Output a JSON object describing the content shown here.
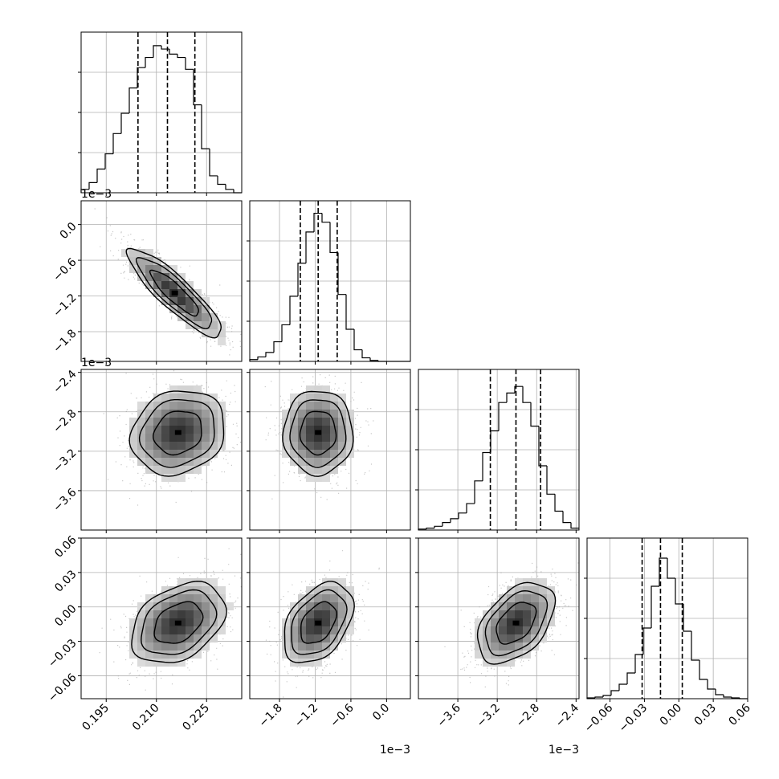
{
  "chart_data": [
    {
      "type": "histogram",
      "panel": "hist-p0",
      "param_index": 0,
      "x_range": [
        0.1875,
        0.2355
      ],
      "x_ticks": [
        0.195,
        0.21,
        0.225
      ],
      "quantile_lines": [
        0.2045,
        0.2133,
        0.2215
      ],
      "bin_edges": [
        0.1875,
        0.1899,
        0.1923,
        0.1947,
        0.1971,
        0.1995,
        0.2019,
        0.2043,
        0.2067,
        0.2091,
        0.2115,
        0.2139,
        0.2163,
        0.2187,
        0.2211,
        0.2235,
        0.2259,
        0.2283,
        0.2307,
        0.2331,
        0.2355
      ],
      "counts": [
        2,
        6,
        14,
        23,
        35,
        47,
        62,
        74,
        80,
        87,
        85,
        82,
        80,
        73,
        52,
        26,
        10,
        5,
        2,
        0
      ],
      "ylim": [
        0,
        95
      ]
    },
    {
      "type": "histogram",
      "panel": "hist-p1",
      "param_index": 1,
      "x_range": [
        -2.3,
        0.4
      ],
      "axis_scale_label": "1e−3",
      "x_ticks": [
        -1.8,
        -1.2,
        -0.6,
        0.0
      ],
      "x_tick_labels": [
        "−1.8",
        "−1.2",
        "−0.6",
        "0.0"
      ],
      "quantile_lines": [
        -1.45,
        -1.15,
        -0.83
      ],
      "bin_edges": [
        -2.3,
        -2.165,
        -2.03,
        -1.895,
        -1.76,
        -1.625,
        -1.49,
        -1.355,
        -1.22,
        -1.085,
        -0.95,
        -0.815,
        -0.68,
        -0.545,
        -0.41,
        -0.275,
        -0.14,
        -0.005,
        0.13,
        0.265,
        0.4
      ],
      "counts": [
        2,
        5,
        10,
        22,
        41,
        73,
        110,
        145,
        166,
        156,
        122,
        75,
        36,
        13,
        4,
        1,
        0,
        0,
        0,
        0
      ],
      "ylim": [
        0,
        180
      ]
    },
    {
      "type": "histogram",
      "panel": "hist-p2",
      "param_index": 2,
      "x_range": [
        -4.0,
        -2.37
      ],
      "axis_scale_label": "1e−3",
      "x_ticks": [
        -3.6,
        -3.2,
        -2.8,
        -2.4
      ],
      "x_tick_labels": [
        "−3.6",
        "−3.2",
        "−2.8",
        "−2.4"
      ],
      "quantile_lines": [
        -3.27,
        -3.01,
        -2.76
      ],
      "bin_edges": [
        -4.0,
        -3.9185,
        -3.837,
        -3.7555,
        -3.674,
        -3.5925,
        -3.511,
        -3.4295,
        -3.348,
        -3.2665,
        -3.185,
        -3.1035,
        -3.022,
        -2.9405,
        -2.859,
        -2.7775,
        -2.696,
        -2.6145,
        -2.533,
        -2.4515,
        -2.37
      ],
      "counts": [
        1,
        2,
        4,
        8,
        12,
        18,
        28,
        52,
        82,
        105,
        135,
        145,
        152,
        135,
        110,
        68,
        38,
        20,
        8,
        2
      ],
      "ylim": [
        0,
        170
      ]
    },
    {
      "type": "histogram",
      "panel": "hist-p3",
      "param_index": 3,
      "x_range": [
        -0.08,
        0.06
      ],
      "x_ticks": [
        -0.06,
        -0.03,
        0.0,
        0.03,
        0.06
      ],
      "x_tick_labels": [
        "−0.06",
        "−0.03",
        "0.00",
        "0.03",
        "0.06"
      ],
      "quantile_lines": [
        -0.032,
        -0.016,
        0.003
      ],
      "bin_edges": [
        -0.08,
        -0.073,
        -0.066,
        -0.059,
        -0.052,
        -0.045,
        -0.038,
        -0.031,
        -0.024,
        -0.017,
        -0.01,
        -0.003,
        0.004,
        0.011,
        0.018,
        0.025,
        0.032,
        0.039,
        0.046,
        0.053,
        0.06
      ],
      "counts": [
        1,
        2,
        4,
        10,
        18,
        32,
        55,
        88,
        140,
        175,
        150,
        118,
        84,
        48,
        24,
        12,
        5,
        2,
        1,
        0
      ],
      "ylim": [
        0,
        200
      ]
    },
    {
      "type": "scatter-density",
      "panel": "2d-p0-p1",
      "x_param": 0,
      "y_param": 1,
      "y_range": [
        -2.3,
        0.4
      ],
      "y_axis_scale_label": "1e−3",
      "y_ticks": [
        0.0,
        -0.6,
        -1.2,
        -1.8
      ],
      "y_tick_labels": [
        "0.0",
        "−0.6",
        "−1.2",
        "−1.8"
      ],
      "center": [
        0.2155,
        -1.15
      ],
      "spread": [
        0.0072,
        0.38
      ],
      "correlation": -0.88
    },
    {
      "type": "scatter-density",
      "panel": "2d-p0-p2",
      "x_param": 0,
      "y_param": 2,
      "y_range": [
        -4.0,
        -2.37
      ],
      "y_axis_scale_label": "1e−3",
      "y_ticks": [
        -2.4,
        -2.8,
        -3.2,
        -3.6
      ],
      "y_tick_labels": [
        "−2.4",
        "−2.8",
        "−3.2",
        "−3.6"
      ],
      "center": [
        0.2165,
        -3.01
      ],
      "spread": [
        0.0072,
        0.22
      ],
      "correlation": 0.15
    },
    {
      "type": "scatter-density",
      "panel": "2d-p1-p2",
      "x_param": 1,
      "y_param": 2,
      "center": [
        -1.15,
        -3.01
      ],
      "spread": [
        0.3,
        0.22
      ],
      "correlation": 0.0
    },
    {
      "type": "scatter-density",
      "panel": "2d-p0-p3",
      "x_param": 0,
      "y_param": 3,
      "y_range": [
        -0.08,
        0.06
      ],
      "y_ticks": [
        0.06,
        0.03,
        0.0,
        -0.03,
        -0.06
      ],
      "y_tick_labels": [
        "0.06",
        "0.03",
        "0.00",
        "−0.03",
        "−0.06"
      ],
      "x_tick_labels": [
        "0.195",
        "0.210",
        "0.225"
      ],
      "center": [
        0.2165,
        -0.014
      ],
      "spread": [
        0.0072,
        0.018
      ],
      "correlation": 0.35
    },
    {
      "type": "scatter-density",
      "panel": "2d-p1-p3",
      "x_param": 1,
      "y_param": 3,
      "center": [
        -1.15,
        -0.014
      ],
      "spread": [
        0.3,
        0.018
      ],
      "correlation": 0.4
    },
    {
      "type": "scatter-density",
      "panel": "2d-p2-p3",
      "x_param": 2,
      "y_param": 3,
      "center": [
        -3.01,
        -0.014
      ],
      "spread": [
        0.2,
        0.018
      ],
      "correlation": 0.45
    }
  ]
}
